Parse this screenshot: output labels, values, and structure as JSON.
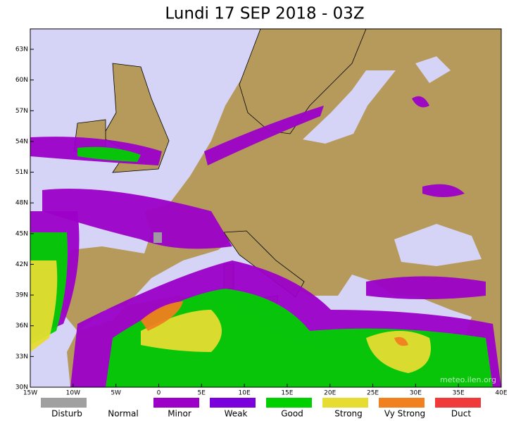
{
  "title": "Lundi 17 SEP 2018 - 03Z",
  "lat_labels": [
    "63N",
    "60N",
    "57N",
    "54N",
    "51N",
    "48N",
    "45N",
    "42N",
    "39N",
    "36N",
    "33N",
    "30N"
  ],
  "lon_labels": [
    "15W",
    "10W",
    "5W",
    "0",
    "5E",
    "10E",
    "15E",
    "20E",
    "25E",
    "30E",
    "35E",
    "40E"
  ],
  "legend": [
    {
      "label": "Disturb",
      "color": "#a0a0a0"
    },
    {
      "label": "Normal",
      "color": "#ffffff"
    },
    {
      "label": "Minor",
      "color": "#9c00c8"
    },
    {
      "label": "Weak",
      "color": "#7a00dc"
    },
    {
      "label": "Good",
      "color": "#00d000"
    },
    {
      "label": "Strong",
      "color": "#e6dc32"
    },
    {
      "label": "Vy Strong",
      "color": "#f08020"
    },
    {
      "label": "Duct",
      "color": "#f03a3a"
    }
  ],
  "watermark": "meteo.ilen.org"
}
